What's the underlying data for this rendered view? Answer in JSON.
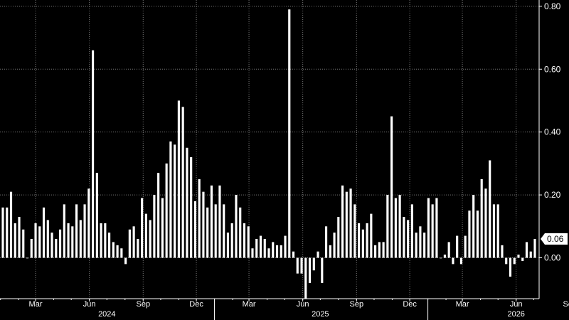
{
  "chart_data": {
    "type": "bar",
    "title": "",
    "xlabel": "",
    "ylabel": "",
    "ylim": [
      -0.13,
      0.82
    ],
    "yticks": [
      0.0,
      0.2,
      0.4,
      0.6,
      0.8
    ],
    "ytick_labels": [
      "0.00",
      "0.20",
      "0.40",
      "0.60",
      "0.80"
    ],
    "grid": true,
    "y_axis_position": "right",
    "colors": {
      "background": "#000000",
      "bars": "#ffffff",
      "grid": "#777777",
      "callout_bg": "#ffffff"
    },
    "x_start": "2024-01-05",
    "interval_days": 7,
    "values": [
      0.16,
      0.16,
      0.21,
      0.11,
      0.13,
      0.09,
      0.0,
      0.06,
      0.11,
      0.1,
      0.16,
      0.12,
      0.08,
      0.06,
      0.09,
      0.17,
      0.11,
      0.1,
      0.17,
      0.12,
      0.17,
      0.22,
      0.66,
      0.27,
      0.11,
      0.11,
      0.08,
      0.05,
      0.04,
      0.03,
      -0.02,
      0.09,
      0.1,
      0.06,
      0.19,
      0.14,
      0.12,
      0.2,
      0.27,
      0.19,
      0.3,
      0.37,
      0.36,
      0.5,
      0.48,
      0.35,
      0.32,
      0.18,
      0.25,
      0.21,
      0.16,
      0.23,
      0.17,
      0.23,
      0.17,
      0.08,
      0.11,
      0.2,
      0.16,
      0.11,
      0.1,
      0.03,
      0.06,
      0.07,
      0.06,
      0.03,
      0.05,
      0.04,
      0.04,
      0.07,
      0.79,
      0.02,
      -0.05,
      -0.05,
      -0.13,
      -0.08,
      -0.04,
      0.02,
      -0.08,
      0.1,
      0.04,
      0.08,
      0.13,
      0.23,
      0.21,
      0.22,
      0.17,
      0.11,
      0.09,
      0.11,
      0.14,
      0.04,
      0.05,
      0.05,
      0.2,
      0.45,
      0.19,
      0.2,
      0.13,
      0.12,
      0.17,
      0.08,
      0.1,
      0.08,
      0.19,
      0.17,
      0.19,
      0.0,
      0.01,
      0.05,
      -0.02,
      0.07,
      -0.02,
      0.07,
      0.15,
      0.2,
      0.15,
      0.25,
      0.22,
      0.31,
      0.17,
      0.17,
      0.04,
      -0.02,
      -0.06,
      -0.02,
      0.01,
      -0.01,
      0.05,
      0.02,
      0.06
    ],
    "month_ticks": [
      {
        "date": "2024-03-01",
        "label": "Mar"
      },
      {
        "date": "2024-06-01",
        "label": "Jun"
      },
      {
        "date": "2024-09-01",
        "label": "Sep"
      },
      {
        "date": "2024-12-01",
        "label": "Dec"
      },
      {
        "date": "2025-03-01",
        "label": "Mar"
      },
      {
        "date": "2025-06-01",
        "label": "Jun"
      },
      {
        "date": "2025-09-01",
        "label": "Sep"
      },
      {
        "date": "2025-12-01",
        "label": "Dec"
      },
      {
        "date": "2026-03-01",
        "label": "Mar"
      },
      {
        "date": "2026-06-01",
        "label": "Jun"
      },
      {
        "date": "2026-09-01",
        "label": "Sep"
      }
    ],
    "year_labels": [
      {
        "label": "2024",
        "date": "2024-07-01"
      },
      {
        "label": "2025",
        "date": "2025-07-01"
      },
      {
        "label": "2026",
        "date": "2026-06-01"
      }
    ],
    "year_boundaries": [
      "2025-01-01",
      "2026-01-01"
    ],
    "last_value_label": "0.06",
    "last_value": 0.06
  }
}
